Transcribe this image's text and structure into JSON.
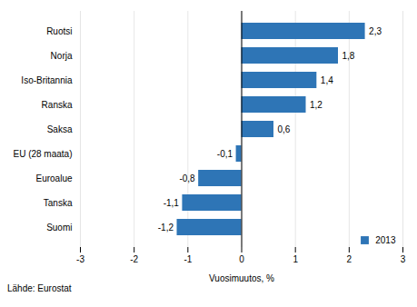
{
  "chart_data": {
    "type": "bar",
    "orientation": "horizontal",
    "categories": [
      "Suomi",
      "Tanska",
      "Euroalue",
      "EU (28 maata)",
      "Saksa",
      "Ranska",
      "Iso-Britannia",
      "Norja",
      "Ruotsi"
    ],
    "series": [
      {
        "name": "2013",
        "color": "#2E75B6",
        "values": [
          -1.2,
          -1.1,
          -0.8,
          -0.1,
          0.6,
          1.2,
          1.4,
          1.8,
          2.3
        ],
        "value_labels": [
          "-1,2",
          "-1,1",
          "-0,8",
          "-0,1",
          "0,6",
          "1,2",
          "1,4",
          "1,8",
          "2,3"
        ]
      }
    ],
    "xlabel": "Vuosimuutos, %",
    "xlim": [
      -3,
      3
    ],
    "xticks": [
      -3,
      -2,
      -1,
      0,
      1,
      2,
      3
    ],
    "grid": true,
    "legend": "lower right",
    "data_labels": true,
    "annotations": [
      "Lähde: Eurostat"
    ]
  }
}
